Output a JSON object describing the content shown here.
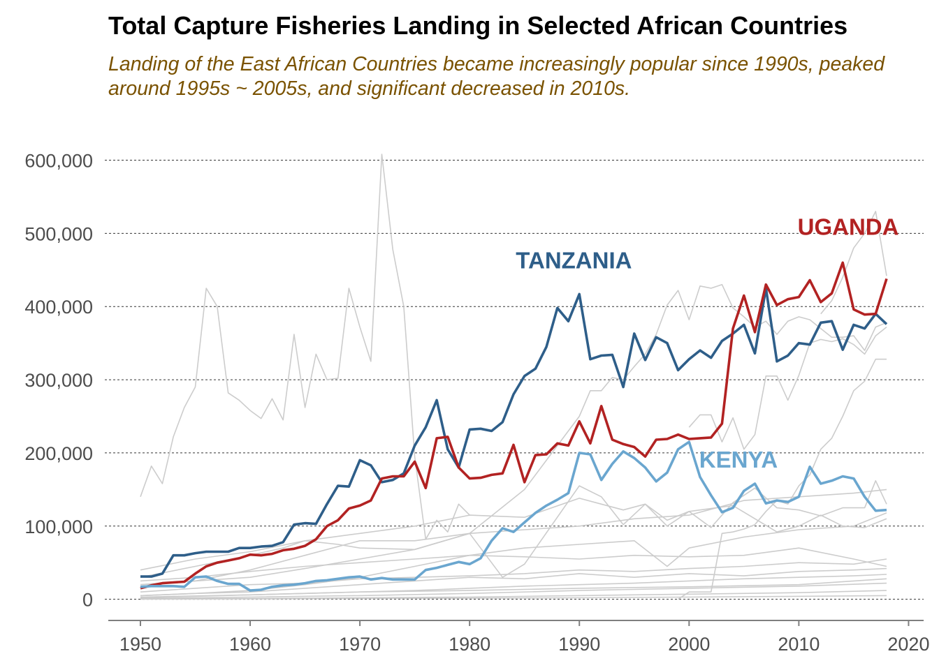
{
  "chart_data": {
    "type": "line",
    "title": "Total Capture Fisheries Landing in Selected African Countries",
    "subtitle_lines": [
      "Landing of the East African Countries became increasingly popular since 1990s, peaked",
      "around 1995s ~ 2005s, and significant decreased in 2010s."
    ],
    "xlim": [
      1946.5,
      2021.5
    ],
    "ylim": [
      -28000,
      610000
    ],
    "x_ticks": [
      1950,
      1960,
      1970,
      1980,
      1990,
      2000,
      2010,
      2020
    ],
    "x_tick_labels": [
      "1950",
      "1960",
      "1970",
      "1980",
      "1990",
      "2000",
      "2010",
      "2020"
    ],
    "y_ticks": [
      0,
      100000,
      200000,
      300000,
      400000,
      500000,
      600000
    ],
    "y_tick_labels": [
      "0",
      "100,000",
      "200,000",
      "300,000",
      "400,000",
      "500,000",
      "600,000"
    ],
    "grid": "horizontal dashed",
    "colors": {
      "tanzania": "#2e5e89",
      "uganda": "#b22222",
      "kenya": "#6aa6cf",
      "other": "#cccccc",
      "subtitle": "#7a5200"
    },
    "highlight_series": [
      {
        "name": "TANZANIA",
        "color": "#2e5e89",
        "label_x": 1989.5,
        "label_y": 452000,
        "x": [
          1950,
          1951,
          1952,
          1953,
          1954,
          1955,
          1956,
          1957,
          1958,
          1959,
          1960,
          1961,
          1962,
          1963,
          1964,
          1965,
          1966,
          1967,
          1968,
          1969,
          1970,
          1971,
          1972,
          1973,
          1974,
          1975,
          1976,
          1977,
          1978,
          1979,
          1980,
          1981,
          1982,
          1983,
          1984,
          1985,
          1986,
          1987,
          1988,
          1989,
          1990,
          1991,
          1992,
          1993,
          1994,
          1995,
          1996,
          1997,
          1998,
          1999,
          2000,
          2001,
          2002,
          2003,
          2004,
          2005,
          2006,
          2007,
          2008,
          2009,
          2010,
          2011,
          2012,
          2013,
          2014,
          2015,
          2016,
          2017,
          2018
        ],
        "values": [
          31000,
          31000,
          35000,
          60000,
          60000,
          63000,
          65000,
          65000,
          65000,
          70000,
          70000,
          72000,
          73000,
          78000,
          102000,
          104000,
          103000,
          130000,
          155000,
          154000,
          190000,
          183000,
          160000,
          163000,
          172000,
          210000,
          235000,
          272000,
          205000,
          180000,
          232000,
          233000,
          230000,
          242000,
          280000,
          305000,
          315000,
          345000,
          398000,
          380000,
          417000,
          328000,
          333000,
          334000,
          290000,
          363000,
          327000,
          358000,
          350000,
          313000,
          328000,
          340000,
          330000,
          353000,
          363000,
          375000,
          336000,
          425000,
          325000,
          333000,
          350000,
          348000,
          378000,
          380000,
          341000,
          375000,
          370000,
          390000,
          376000
        ]
      },
      {
        "name": "UGANDA",
        "color": "#b22222",
        "label_x": 2014.5,
        "label_y": 498000,
        "x": [
          1950,
          1951,
          1952,
          1953,
          1954,
          1955,
          1956,
          1957,
          1958,
          1959,
          1960,
          1961,
          1962,
          1963,
          1964,
          1965,
          1966,
          1967,
          1968,
          1969,
          1970,
          1971,
          1972,
          1973,
          1974,
          1975,
          1976,
          1977,
          1978,
          1979,
          1980,
          1981,
          1982,
          1983,
          1984,
          1985,
          1986,
          1987,
          1988,
          1989,
          1990,
          1991,
          1992,
          1993,
          1994,
          1995,
          1996,
          1997,
          1998,
          1999,
          2000,
          2001,
          2002,
          2003,
          2004,
          2005,
          2006,
          2007,
          2008,
          2009,
          2010,
          2011,
          2012,
          2013,
          2014,
          2015,
          2016,
          2017,
          2018
        ],
        "values": [
          15000,
          19000,
          22000,
          23000,
          24000,
          35000,
          45000,
          50000,
          53000,
          56000,
          61000,
          60000,
          62000,
          67000,
          69000,
          73000,
          82000,
          100000,
          108000,
          124000,
          128000,
          135000,
          165000,
          168000,
          168000,
          188000,
          152000,
          220000,
          222000,
          180000,
          165000,
          166000,
          170000,
          172000,
          211000,
          160000,
          197000,
          198000,
          213000,
          210000,
          243000,
          213000,
          264000,
          218000,
          212000,
          208000,
          195000,
          218000,
          219000,
          225000,
          219000,
          220000,
          221000,
          240000,
          370000,
          415000,
          365000,
          430000,
          402000,
          410000,
          413000,
          436000,
          406000,
          418000,
          460000,
          396000,
          389000,
          390000,
          438000
        ]
      },
      {
        "name": "KENYA",
        "color": "#6aa6cf",
        "label_x": 2004.5,
        "label_y": 180000,
        "x": [
          1950,
          1951,
          1952,
          1953,
          1954,
          1955,
          1956,
          1957,
          1958,
          1959,
          1960,
          1961,
          1962,
          1963,
          1964,
          1965,
          1966,
          1967,
          1968,
          1969,
          1970,
          1971,
          1972,
          1973,
          1974,
          1975,
          1976,
          1977,
          1978,
          1979,
          1980,
          1981,
          1982,
          1983,
          1984,
          1985,
          1986,
          1987,
          1988,
          1989,
          1990,
          1991,
          1992,
          1993,
          1994,
          1995,
          1996,
          1997,
          1998,
          1999,
          2000,
          2001,
          2002,
          2003,
          2004,
          2005,
          2006,
          2007,
          2008,
          2009,
          2010,
          2011,
          2012,
          2013,
          2014,
          2015,
          2016,
          2017,
          2018
        ],
        "values": [
          17000,
          18000,
          18000,
          18000,
          17000,
          30000,
          31000,
          25000,
          21000,
          21000,
          12000,
          13000,
          17000,
          19000,
          20000,
          22000,
          25000,
          26000,
          28000,
          30000,
          31000,
          27000,
          29000,
          27000,
          27000,
          27000,
          40000,
          43000,
          47000,
          51000,
          48000,
          56000,
          80000,
          97000,
          92000,
          105000,
          118000,
          128000,
          136000,
          145000,
          200000,
          198000,
          163000,
          185000,
          202000,
          193000,
          180000,
          161000,
          173000,
          205000,
          215000,
          167000,
          142000,
          119000,
          125000,
          148000,
          158000,
          131000,
          135000,
          133000,
          140000,
          181000,
          158000,
          162000,
          168000,
          165000,
          140000,
          121000,
          122000
        ]
      }
    ],
    "background_series": [
      {
        "x": [
          1950,
          1951,
          1952,
          1953,
          1954,
          1955,
          1956,
          1957,
          1958,
          1959,
          1960,
          1961,
          1962,
          1963,
          1964,
          1965,
          1966,
          1967,
          1968,
          1969,
          1970,
          1971,
          1972,
          1973,
          1974,
          1975,
          1976,
          1977,
          1978,
          1979,
          1980
        ],
        "values": [
          140000,
          182000,
          158000,
          222000,
          262000,
          290000,
          425000,
          400000,
          282000,
          272000,
          258000,
          247000,
          274000,
          245000,
          362000,
          262000,
          335000,
          300000,
          302000,
          425000,
          372000,
          325000,
          608000,
          478000,
          400000,
          195000,
          82000,
          108000,
          92000,
          130000,
          115000
        ]
      },
      {
        "x": [
          1950,
          1955,
          1960,
          1965,
          1970,
          1975,
          1980,
          1985,
          1990,
          1991,
          1992,
          1993,
          1994,
          1995,
          1996,
          1997,
          1998,
          1999,
          2000,
          2001,
          2002,
          2003,
          2004,
          2005,
          2006,
          2007,
          2008,
          2009,
          2010,
          2011,
          2012,
          2013,
          2014,
          2015,
          2016,
          2017,
          2018
        ],
        "values": [
          20000,
          25000,
          30000,
          42000,
          55000,
          68000,
          90000,
          150000,
          250000,
          285000,
          285000,
          303000,
          300000,
          318000,
          335000,
          362000,
          402000,
          422000,
          382000,
          428000,
          425000,
          430000,
          398000,
          386000,
          372000,
          380000,
          362000,
          380000,
          386000,
          382000,
          370000,
          358000,
          358000,
          360000,
          340000,
          372000,
          378000
        ]
      },
      {
        "x": [
          2012,
          2013,
          2014,
          2015,
          2016,
          2017,
          2018
        ],
        "values": [
          390000,
          408000,
          440000,
          480000,
          500000,
          530000,
          442000
        ]
      },
      {
        "x": [
          2000,
          2001,
          2002,
          2003,
          2004,
          2005,
          2006,
          2007,
          2008,
          2009,
          2010,
          2011,
          2012,
          2013,
          2014,
          2015,
          2016,
          2017,
          2018
        ],
        "values": [
          235000,
          252000,
          252000,
          215000,
          248000,
          205000,
          225000,
          305000,
          305000,
          272000,
          306000,
          350000,
          355000,
          352000,
          356000,
          348000,
          335000,
          360000,
          372000
        ]
      },
      {
        "x": [
          1999,
          2000,
          2001,
          2002,
          2003,
          2004,
          2005,
          2006,
          2007,
          2008,
          2009,
          2010,
          2011,
          2012,
          2013,
          2014,
          2015,
          2016,
          2017,
          2018
        ],
        "values": [
          0,
          10000,
          10000,
          10000,
          90000,
          92000,
          96000,
          102000,
          120000,
          135000,
          130000,
          155000,
          170000,
          205000,
          220000,
          250000,
          285000,
          298000,
          328000,
          328000
        ]
      },
      {
        "x": [
          1950,
          1955,
          1960,
          1965,
          1970,
          1975,
          1980,
          1985,
          1990,
          1992,
          1994,
          1996,
          1998,
          2000,
          2002,
          2004,
          2006,
          2008,
          2010,
          2012,
          2014,
          2016,
          2017,
          2018
        ],
        "values": [
          40000,
          55000,
          65000,
          80000,
          90000,
          100000,
          115000,
          112000,
          138000,
          130000,
          122000,
          130000,
          108000,
          120000,
          98000,
          132000,
          152000,
          125000,
          122000,
          114000,
          125000,
          125000,
          162000,
          130000
        ]
      },
      {
        "x": [
          1950,
          1955,
          1960,
          1963,
          1965,
          1968,
          1970,
          1975,
          1980,
          1983,
          1985,
          1990,
          1992,
          1994,
          1996,
          1998,
          2000,
          2004,
          2008,
          2010,
          2012,
          2014,
          2016,
          2018
        ],
        "values": [
          30000,
          45000,
          60000,
          70000,
          80000,
          75000,
          70000,
          68000,
          90000,
          30000,
          48000,
          155000,
          140000,
          102000,
          130000,
          100000,
          120000,
          128000,
          92000,
          100000,
          115000,
          100000,
          98000,
          110000
        ]
      },
      {
        "x": [
          1950,
          1955,
          1960,
          1965,
          1970,
          1975,
          1980,
          1985,
          1990,
          1995,
          2000,
          2005,
          2010,
          2015,
          2018
        ],
        "values": [
          20000,
          25000,
          40000,
          60000,
          80000,
          80000,
          90000,
          95000,
          100000,
          110000,
          115000,
          135000,
          140000,
          145000,
          150000
        ]
      },
      {
        "x": [
          1950,
          1955,
          1960,
          1965,
          1970,
          1975,
          1980,
          1985,
          1990,
          1995,
          1998,
          2000,
          2005,
          2010,
          2015,
          2018
        ],
        "values": [
          5000,
          8000,
          12000,
          20000,
          30000,
          45000,
          60000,
          70000,
          75000,
          80000,
          45000,
          70000,
          85000,
          95000,
          100000,
          118000
        ]
      },
      {
        "x": [
          1950,
          1955,
          1960,
          1965,
          1970,
          1975,
          1980,
          1985,
          1990,
          1995,
          2000,
          2005,
          2010,
          2015,
          2018
        ],
        "values": [
          25000,
          30000,
          38000,
          45000,
          50000,
          55000,
          60000,
          58000,
          55000,
          60000,
          58000,
          60000,
          70000,
          55000,
          45000
        ]
      },
      {
        "x": [
          1950,
          1955,
          1960,
          1965,
          1970,
          1975,
          1980,
          1985,
          1990,
          1995,
          2000,
          2005,
          2010,
          2015,
          2018
        ],
        "values": [
          10000,
          15000,
          20000,
          22000,
          28000,
          30000,
          32000,
          35000,
          40000,
          38000,
          42000,
          45000,
          50000,
          48000,
          55000
        ]
      },
      {
        "x": [
          1950,
          1955,
          1960,
          1965,
          1970,
          1975,
          1980,
          1985,
          1990,
          1995,
          2000,
          2005,
          2010,
          2015,
          2018
        ],
        "values": [
          5000,
          8000,
          10000,
          15000,
          20000,
          25000,
          30000,
          28000,
          35000,
          30000,
          35000,
          32000,
          38000,
          40000,
          42000
        ]
      },
      {
        "x": [
          1950,
          1955,
          1960,
          1965,
          1970,
          1975,
          1980,
          1985,
          1990,
          1995,
          2000,
          2005,
          2010,
          2015,
          2018
        ],
        "values": [
          2000,
          4000,
          6000,
          8000,
          10000,
          12000,
          15000,
          18000,
          20000,
          22000,
          25000,
          28000,
          30000,
          32000,
          34000
        ]
      },
      {
        "x": [
          1950,
          1960,
          1970,
          1980,
          1990,
          2000,
          2010,
          2018
        ],
        "values": [
          1000,
          3000,
          5000,
          8000,
          12000,
          15000,
          18000,
          22000
        ]
      },
      {
        "x": [
          1950,
          1960,
          1970,
          1980,
          1990,
          2000,
          2010,
          2018
        ],
        "values": [
          3000,
          6000,
          10000,
          12000,
          15000,
          17000,
          20000,
          28000
        ]
      },
      {
        "x": [
          1950,
          1960,
          1970,
          1980,
          1990,
          2000,
          2010,
          2018
        ],
        "values": [
          500,
          1000,
          2000,
          3000,
          5000,
          7000,
          9000,
          12000
        ]
      },
      {
        "x": [
          1950,
          1960,
          1970,
          1980,
          1990,
          2000,
          2010,
          2018
        ],
        "values": [
          200,
          500,
          1000,
          1500,
          2000,
          3000,
          4000,
          5000
        ]
      }
    ]
  }
}
